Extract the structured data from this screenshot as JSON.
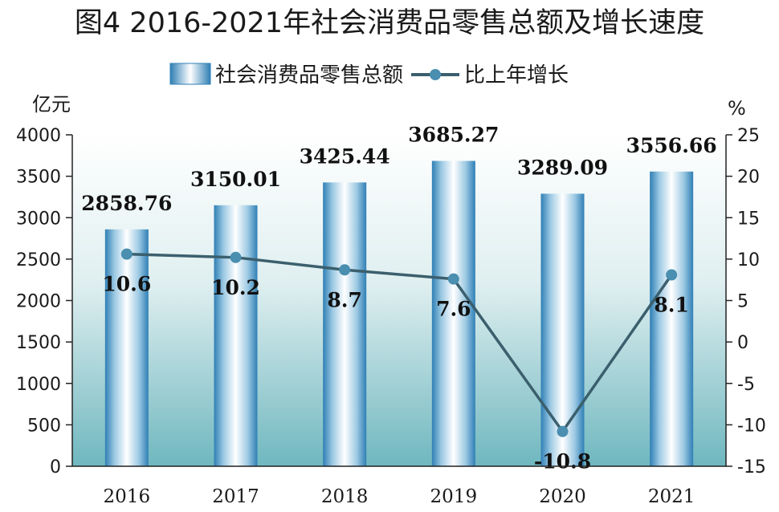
{
  "title": "图4  2016-2021年社会消费品零售总额及增长速度",
  "legend": {
    "bar_label": "社会消费品零售总额",
    "line_label": "比上年增长"
  },
  "axes": {
    "left_unit": "亿元",
    "right_unit": "%"
  },
  "colors": {
    "bar_edge": "#2f7fb5",
    "bar_mid": "#ffffff",
    "line": "#3b5f6d",
    "marker": "#4a8eb0",
    "bg_top": "#ffffff",
    "bg_bottom": "#6fb7bf"
  },
  "chart_data": {
    "type": "bar",
    "categories": [
      "2016",
      "2017",
      "2018",
      "2019",
      "2020",
      "2021"
    ],
    "series": [
      {
        "name": "社会消费品零售总额",
        "type": "bar",
        "axis": "left",
        "values": [
          2858.76,
          3150.01,
          3425.44,
          3685.27,
          3289.09,
          3556.66
        ],
        "labels": [
          "2858.76",
          "3150.01",
          "3425.44",
          "3685.27",
          "3289.09",
          "3556.66"
        ]
      },
      {
        "name": "比上年增长",
        "type": "line",
        "axis": "right",
        "values": [
          10.6,
          10.2,
          8.7,
          7.6,
          -10.8,
          8.1
        ],
        "labels": [
          "10.6",
          "10.2",
          "8.7",
          "7.6",
          "-10.8",
          "8.1"
        ]
      }
    ],
    "left_axis": {
      "min": 0,
      "max": 4000,
      "ticks": [
        "0",
        "500",
        "1000",
        "1500",
        "2000",
        "2500",
        "3000",
        "3500",
        "4000"
      ]
    },
    "right_axis": {
      "min": -15,
      "max": 25,
      "ticks": [
        "-15",
        "-10",
        "-5",
        "0",
        "5",
        "10",
        "15",
        "20",
        "25"
      ]
    },
    "grid": false,
    "legend_position": "top"
  }
}
